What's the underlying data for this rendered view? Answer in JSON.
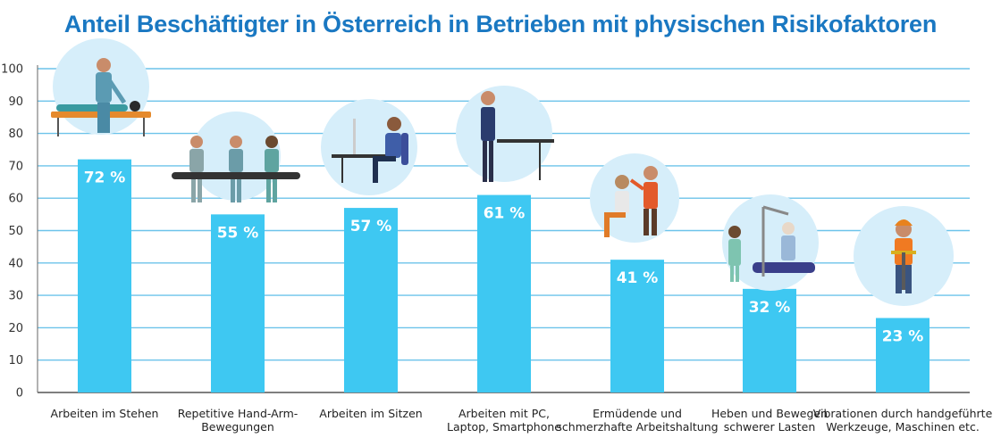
{
  "chart_data": {
    "type": "bar",
    "title": "Anteil Beschäftigter in Österreich in Betrieben mit physischen Risikofaktoren",
    "categories": [
      [
        "Arbeiten im Stehen"
      ],
      [
        "Repetitive Hand-Arm-",
        "Bewegungen"
      ],
      [
        "Arbeiten im Sitzen"
      ],
      [
        "Arbeiten mit PC,",
        "Laptop, Smartphone"
      ],
      [
        "Ermüdende und",
        "schmerzhafte Arbeitshaltung"
      ],
      [
        "Heben und Bewegen",
        "schwerer Lasten"
      ],
      [
        "Vibrationen durch handgeführte",
        "Werkzeuge, Maschinen etc."
      ]
    ],
    "values": [
      72,
      55,
      57,
      61,
      41,
      32,
      23
    ],
    "data_labels": [
      "72 %",
      "55 %",
      "57 %",
      "61 %",
      "41 %",
      "32 %",
      "23 %"
    ],
    "yticks": [
      "0",
      "10",
      "20",
      "30",
      "40",
      "50",
      "60",
      "70",
      "80",
      "90",
      "100"
    ],
    "ylim": [
      0,
      100
    ],
    "grid": true,
    "icons": [
      "massage-therapist-icon",
      "assembly-line-workers-icon",
      "seated-desk-worker-icon",
      "standing-desk-worker-icon",
      "hairdresser-icon",
      "patient-lift-caregiver-icon",
      "jackhammer-worker-icon"
    ],
    "colors": {
      "bar": "#3ec8f2",
      "grid": "#6cc3ea",
      "title": "#1a78c2",
      "icon_circle": "#d6eefa"
    }
  }
}
